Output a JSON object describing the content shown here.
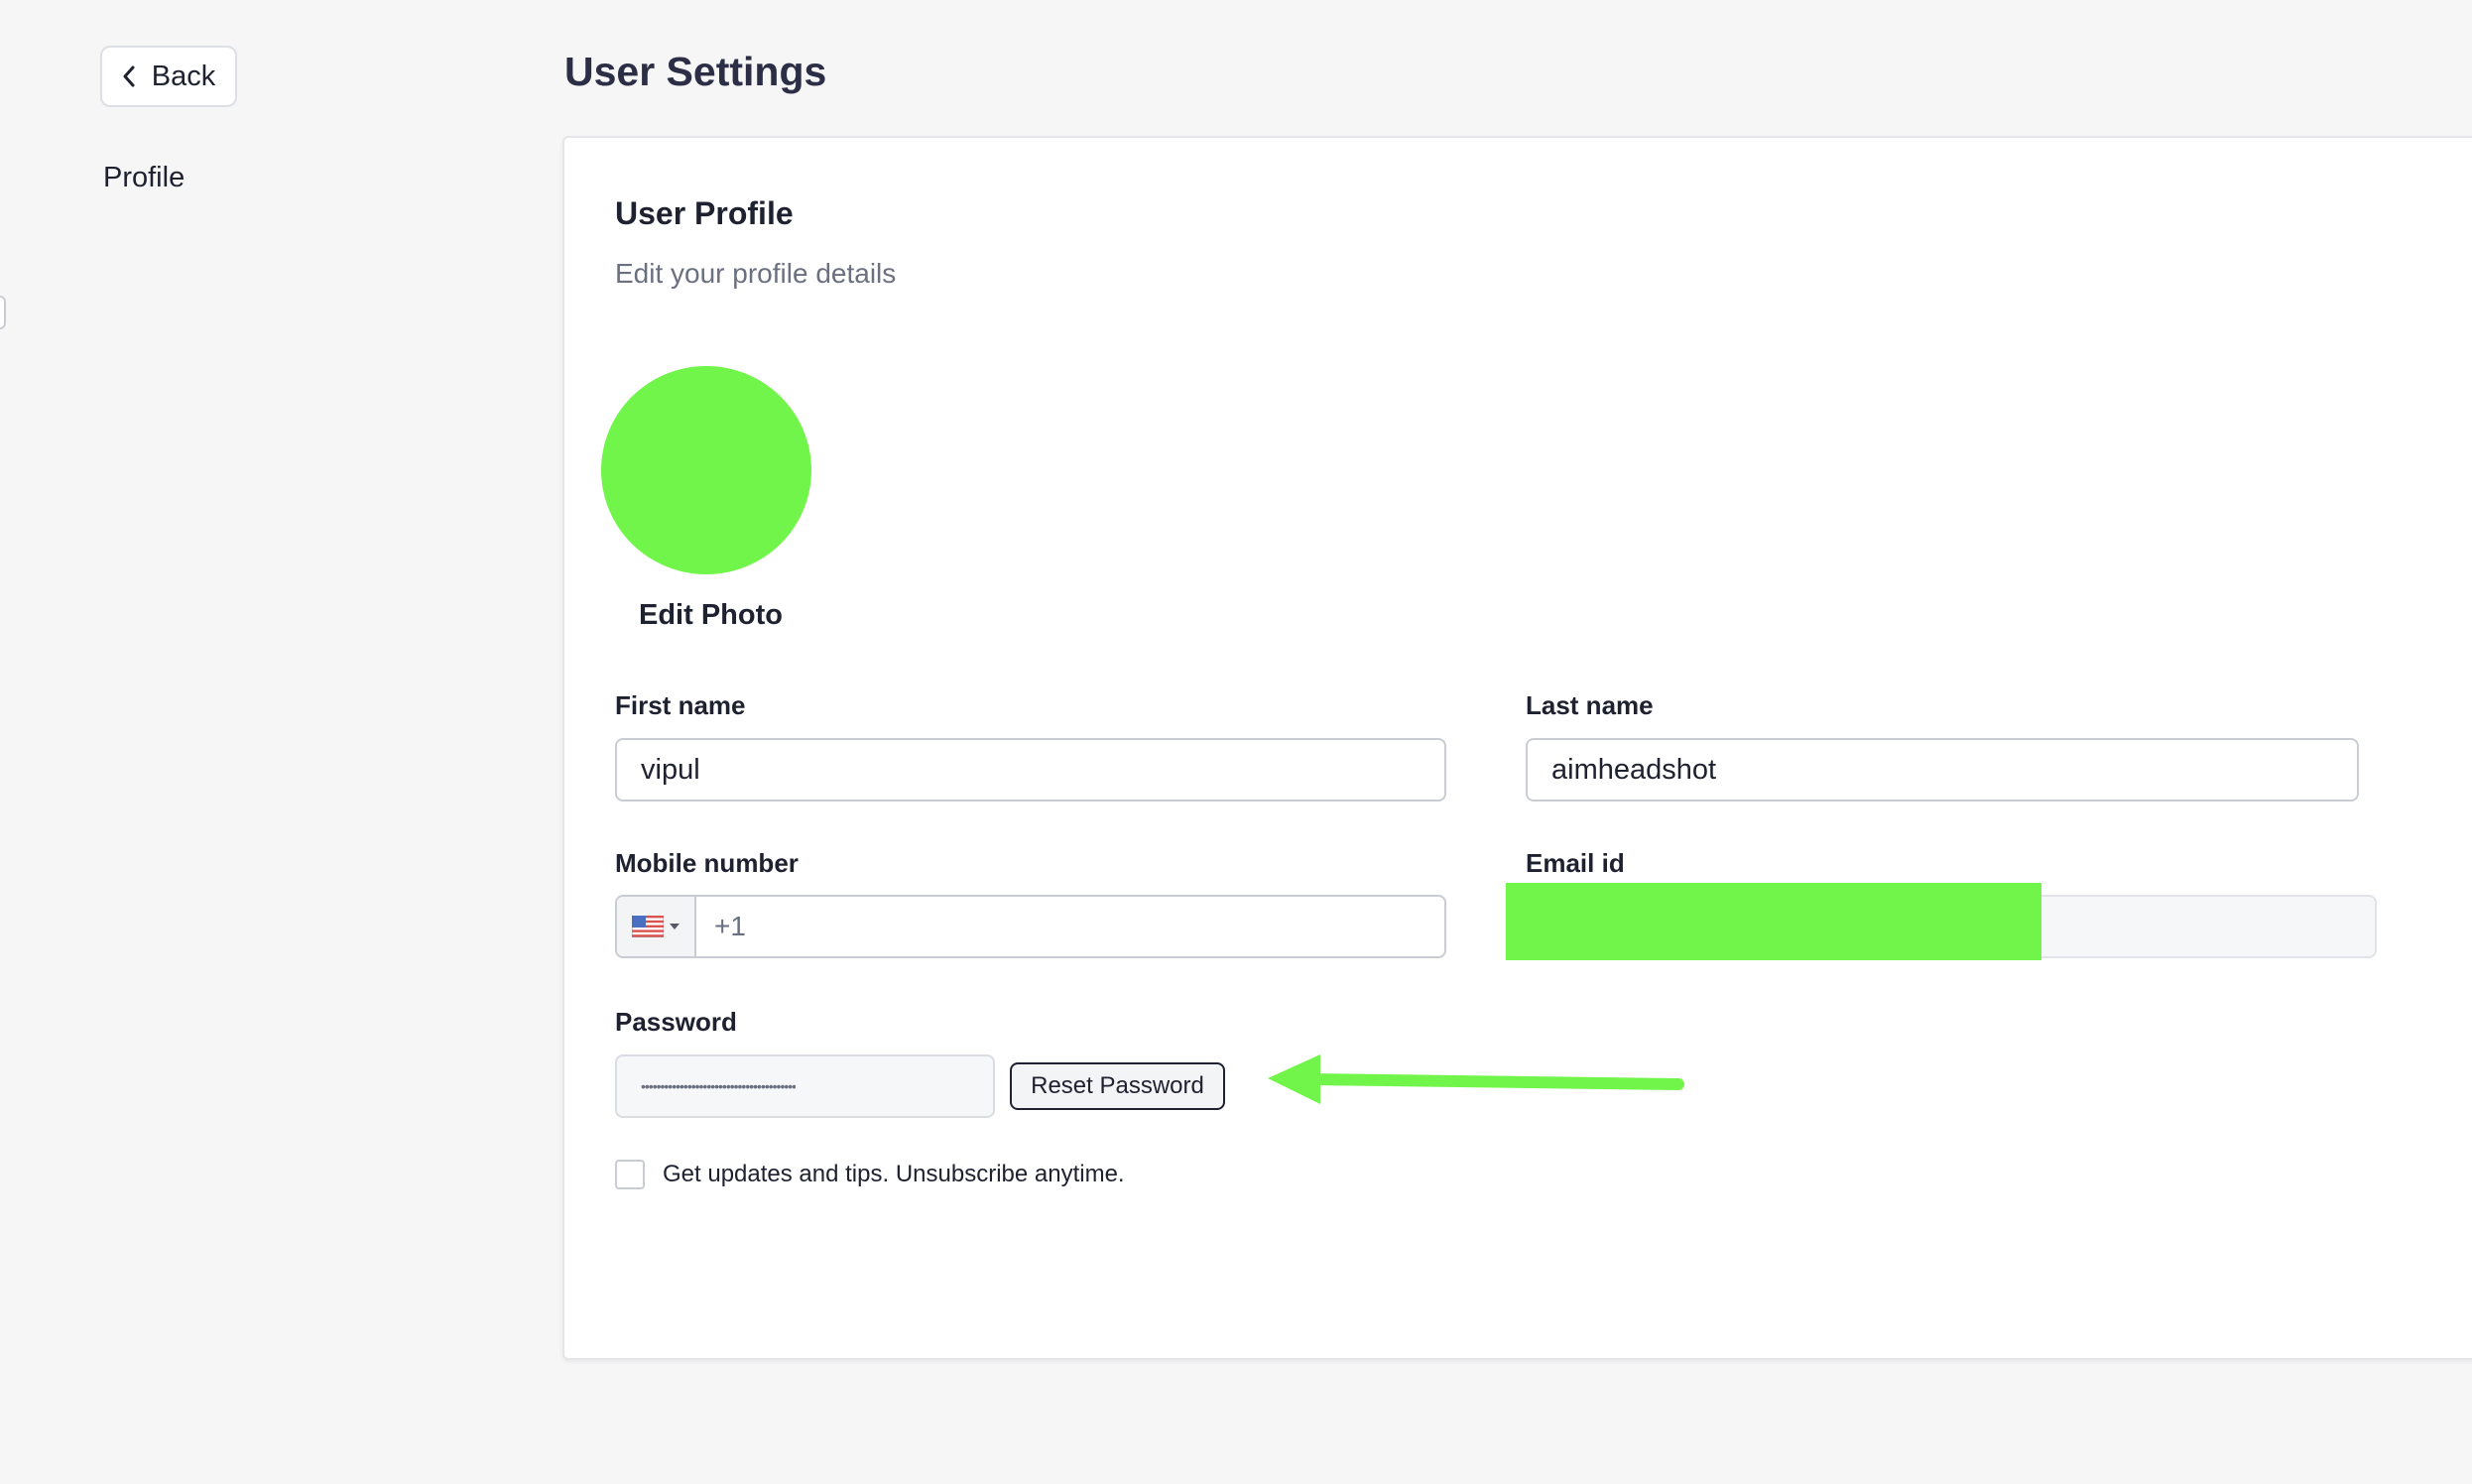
{
  "nav": {
    "back_label": "Back",
    "sidebar_items": [
      {
        "label": "Profile"
      }
    ]
  },
  "page": {
    "title": "User Settings"
  },
  "profile_card": {
    "title": "User Profile",
    "subtitle": "Edit your profile details",
    "edit_photo_label": "Edit Photo"
  },
  "form": {
    "first_name": {
      "label": "First name",
      "value": "vipul"
    },
    "last_name": {
      "label": "Last name",
      "value": "aimheadshot"
    },
    "mobile": {
      "label": "Mobile number",
      "country_code": "+1",
      "country_icon": "us-flag-icon"
    },
    "email": {
      "label": "Email id",
      "value": ""
    },
    "password": {
      "label": "Password",
      "masked_value": "••••••••••••••••••••••••••••••••••••••••"
    },
    "reset_password_label": "Reset Password",
    "newsletter": {
      "label": "Get updates and tips. Unsubscribe anytime.",
      "checked": false
    }
  },
  "colors": {
    "background": "#f6f6f6",
    "card": "#ffffff",
    "text": "#1e2130",
    "muted_text": "#6b7080",
    "border": "#c9ccd3",
    "highlight_green": "#72f54a"
  }
}
